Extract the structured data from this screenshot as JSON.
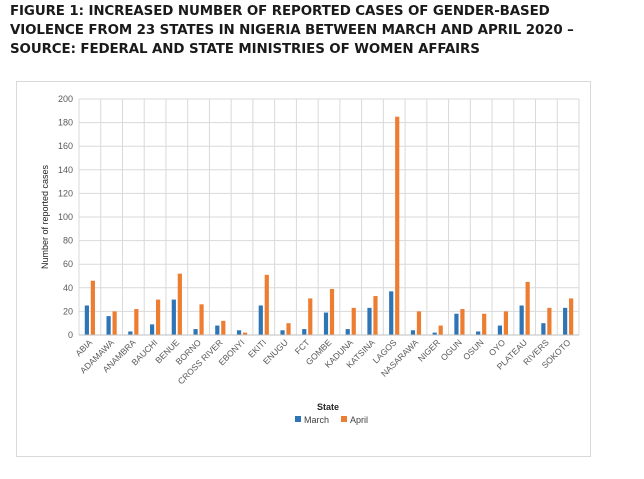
{
  "figure": {
    "title_lines": [
      "FIGURE 1: INCREASED NUMBER OF REPORTED CASES OF GENDER-BASED",
      "VIOLENCE FROM 23 STATES IN NIGERIA BETWEEN MARCH AND APRIL 2020 –",
      "SOURCE: FEDERAL AND STATE MINISTRIES OF WOMEN AFFAIRS"
    ]
  },
  "chart_data": {
    "type": "bar",
    "title": "",
    "xlabel": "State",
    "ylabel": "Number of reported cases",
    "ylim": [
      0,
      200
    ],
    "yticks": [
      0,
      20,
      40,
      60,
      80,
      100,
      120,
      140,
      160,
      180,
      200
    ],
    "grid": true,
    "legend_position": "bottom",
    "categories": [
      "ABIA",
      "ADAMAWA",
      "ANAMBRA",
      "BAUCHI",
      "BENUE",
      "BORNO",
      "CROSS RIVER",
      "EBONYI",
      "EKITI",
      "ENUGU",
      "FCT",
      "GOMBE",
      "KADUNA",
      "KATSINA",
      "LAGOS",
      "NASARAWA",
      "NIGER",
      "OGUN",
      "OSUN",
      "OYO",
      "PLATEAU",
      "RIVERS",
      "SOKOTO"
    ],
    "series": [
      {
        "name": "March",
        "color": "#2E75B6",
        "values": [
          25,
          16,
          3,
          9,
          30,
          5,
          8,
          4,
          25,
          4,
          5,
          19,
          5,
          23,
          37,
          4,
          2,
          18,
          3,
          8,
          25,
          10,
          23
        ]
      },
      {
        "name": "April",
        "color": "#ED7D31",
        "values": [
          46,
          20,
          22,
          30,
          52,
          26,
          12,
          2,
          51,
          10,
          31,
          39,
          23,
          33,
          185,
          20,
          8,
          22,
          18,
          20,
          45,
          23,
          31
        ]
      }
    ]
  }
}
